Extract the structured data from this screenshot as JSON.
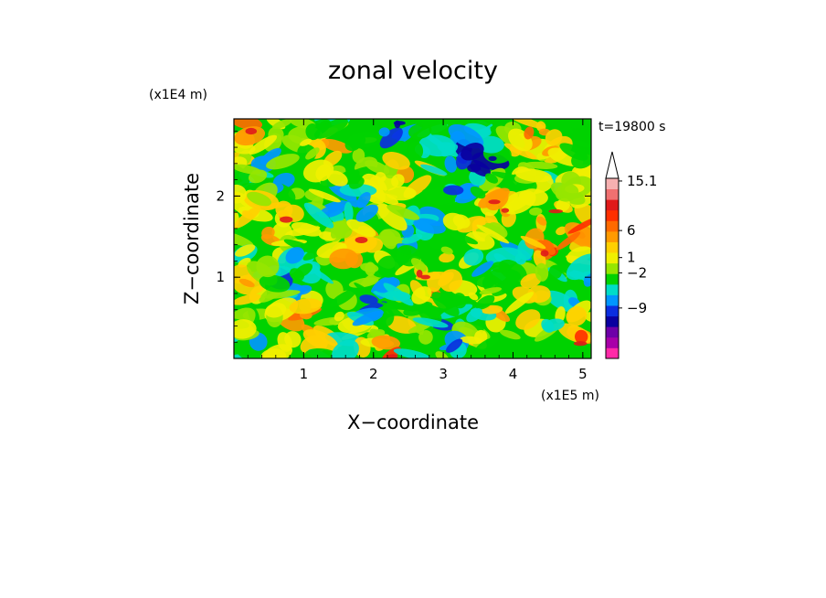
{
  "chart_data": {
    "type": "heatmap",
    "title": "zonal velocity",
    "xlabel": "X−coordinate",
    "ylabel": "Z−coordinate",
    "x_unit": "(x1E5 m)",
    "y_unit": "(x1E4 m)",
    "time_label": "t=19800 s",
    "x_ticks": [
      "1",
      "2",
      "3",
      "4",
      "5"
    ],
    "y_ticks": [
      "1",
      "2"
    ],
    "xlim": [
      0,
      5.12
    ],
    "ylim": [
      0,
      2.95
    ],
    "colorbar": {
      "labels": [
        "15.1",
        "6",
        "1",
        "−2",
        "−9"
      ],
      "colors": [
        "#ff2aa8",
        "#a800a8",
        "#6e00a8",
        "#0a00a0",
        "#0b2ee0",
        "#0096ff",
        "#00dcc8",
        "#00d200",
        "#96e600",
        "#f0f000",
        "#ffd000",
        "#ff9a00",
        "#ff6a00",
        "#ff3000",
        "#e01a1a",
        "#f07070",
        "#f6b0b0"
      ]
    },
    "colors": {
      "positive_strong": "#ff3000",
      "neutral": "#00d200",
      "negative_strong": "#0a00a0"
    }
  }
}
